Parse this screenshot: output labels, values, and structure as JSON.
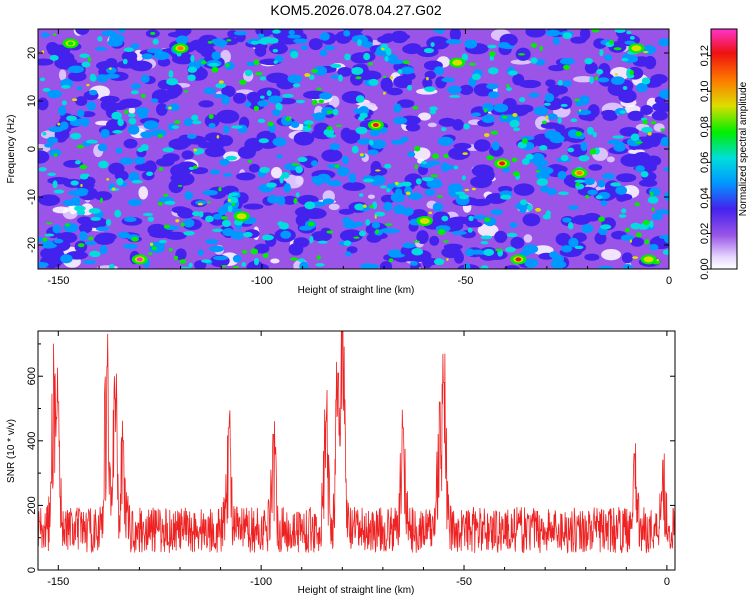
{
  "title": "KOM5.2026.078.04.27.G02",
  "colors": {
    "background": "#ffffff",
    "snr_line": "#ee2222",
    "heatmap_floor": "#9a55e8"
  },
  "chart_data": [
    {
      "type": "heatmap",
      "xlabel": "Height of straight line (km)",
      "ylabel": "Frequency (Hz)",
      "xlim": [
        -155,
        0
      ],
      "ylim": [
        -25,
        25
      ],
      "xticks": [
        -150,
        -100,
        -50,
        0
      ],
      "yticks": [
        -20,
        -10,
        0,
        10,
        20
      ],
      "colorbar": {
        "label": "Normalized spectral amplitude",
        "range": [
          0,
          0.135
        ],
        "ticks": [
          "0.00",
          "0.02",
          "0.04",
          "0.06",
          "0.08",
          "0.10",
          "0.12"
        ],
        "colormap": [
          "#ffffff",
          "#9a55e8",
          "#4422ee",
          "#0099ff",
          "#00dddd",
          "#00ee00",
          "#dddd00",
          "#ff7700",
          "#ee1111",
          "#ff33cc"
        ]
      },
      "peaks": [
        {
          "x": -130,
          "y": -23,
          "value": 0.13
        },
        {
          "x": -37,
          "y": -23,
          "value": 0.12
        },
        {
          "x": -72,
          "y": 5,
          "value": 0.12
        },
        {
          "x": -41,
          "y": -3,
          "value": 0.12
        },
        {
          "x": -120,
          "y": 21,
          "value": 0.11
        },
        {
          "x": -22,
          "y": -5,
          "value": 0.1
        },
        {
          "x": -60,
          "y": -15,
          "value": 0.09
        },
        {
          "x": -105,
          "y": -14,
          "value": 0.09
        },
        {
          "x": -52,
          "y": 18,
          "value": 0.09
        },
        {
          "x": -147,
          "y": 22,
          "value": 0.08
        },
        {
          "x": -8,
          "y": 21,
          "value": 0.09
        },
        {
          "x": -5,
          "y": -23,
          "value": 0.09
        }
      ]
    },
    {
      "type": "line",
      "xlabel": "Height of straight line (km)",
      "ylabel": "SNR (10 * v/v)",
      "xlim": [
        -155,
        2
      ],
      "ylim": [
        0,
        740
      ],
      "xticks": [
        -150,
        -100,
        -50,
        0
      ],
      "yticks": [
        0,
        200,
        400,
        600
      ],
      "series": [
        {
          "baseline": 150,
          "peaks": [
            {
              "x": -151,
              "y": 600
            },
            {
              "x": -150,
              "y": 520
            },
            {
              "x": -138,
              "y": 630
            },
            {
              "x": -136,
              "y": 530
            },
            {
              "x": -134,
              "y": 400
            },
            {
              "x": -80,
              "y": 740
            },
            {
              "x": -81,
              "y": 610
            },
            {
              "x": -84,
              "y": 460
            },
            {
              "x": -55,
              "y": 580
            },
            {
              "x": -56,
              "y": 520
            },
            {
              "x": -65,
              "y": 440
            },
            {
              "x": -108,
              "y": 440
            },
            {
              "x": -97,
              "y": 420
            },
            {
              "x": -8,
              "y": 360
            },
            {
              "x": -1,
              "y": 340
            }
          ]
        }
      ]
    }
  ]
}
